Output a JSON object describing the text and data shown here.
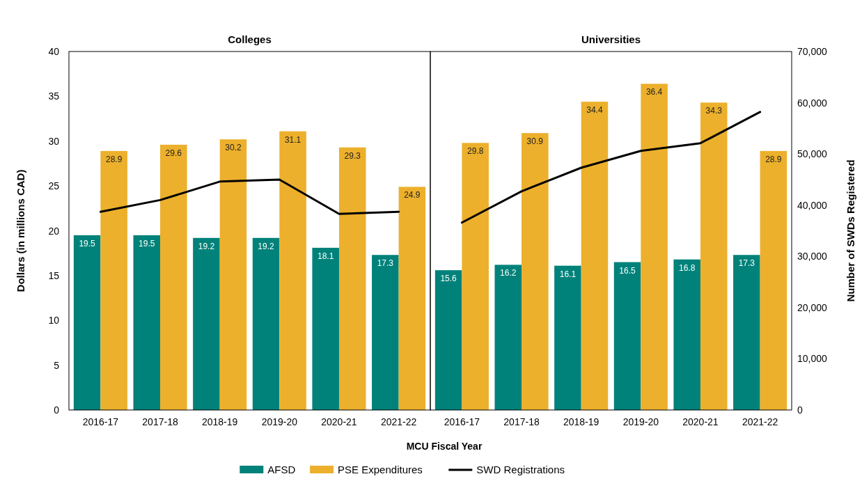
{
  "chart_data": [
    {
      "type": "bar",
      "title": "Colleges",
      "xlabel": "MCU Fiscal Year",
      "ylabel": "Dollars (in millions CAD)",
      "categories": [
        "2016-17",
        "2017-18",
        "2018-19",
        "2019-20",
        "2020-21",
        "2021-22"
      ],
      "ylim": [
        0,
        40
      ],
      "yticks": [
        0,
        5,
        10,
        15,
        20,
        25,
        30,
        35,
        40
      ],
      "y2lim": [
        0,
        70000
      ],
      "legend": "bottom",
      "grid": false,
      "series": [
        {
          "name": "AFSD",
          "color": "#00827a",
          "values": [
            19.5,
            19.5,
            19.2,
            19.2,
            18.1,
            17.3
          ],
          "value_labels": [
            "19.5",
            "19.5",
            "19.2",
            "19.2",
            "18.1",
            "17.3"
          ]
        },
        {
          "name": "PSE Expenditures",
          "color": "#ecb02c",
          "values": [
            28.9,
            29.6,
            30.2,
            31.1,
            29.3,
            24.9
          ],
          "value_labels": [
            "28.9",
            "29.6",
            "30.2",
            "31.1",
            "29.3",
            "24.9"
          ]
        },
        {
          "name": "SWD Registrations",
          "type": "line",
          "axis": "y2",
          "color": "#000000",
          "marker": "none",
          "line_style": "solid",
          "values": [
            38700,
            41000,
            44600,
            45000,
            38300,
            38700
          ]
        }
      ]
    },
    {
      "type": "bar",
      "title": "Universities",
      "y2label": "Number of SWDs Registered",
      "categories": [
        "2016-17",
        "2017-18",
        "2018-19",
        "2019-20",
        "2020-21",
        "2021-22"
      ],
      "ylim": [
        0,
        40
      ],
      "y2lim": [
        0,
        70000
      ],
      "y2ticks": [
        0,
        {
          "value": 10000,
          "label": "10,000"
        },
        {
          "value": 20000,
          "label": "20,000"
        },
        {
          "value": 30000,
          "label": "30,000"
        },
        {
          "value": 40000,
          "label": "40,000"
        },
        {
          "value": 50000,
          "label": "50,000"
        },
        {
          "value": 60000,
          "label": "60,000"
        },
        {
          "value": 70000,
          "label": "70,000"
        }
      ],
      "grid": false,
      "series": [
        {
          "color": "#00827a",
          "values": [
            15.6,
            16.2,
            16.1,
            16.5,
            16.8,
            17.3
          ],
          "value_labels": [
            "15.6",
            "16.2",
            "16.1",
            "16.5",
            "16.8",
            "17.3"
          ]
        },
        {
          "color": "#ecb02c",
          "values": [
            29.8,
            30.9,
            34.4,
            36.4,
            34.3,
            28.9
          ],
          "value_labels": [
            "29.8",
            "30.9",
            "34.4",
            "36.4",
            "34.3",
            "28.9"
          ]
        },
        {
          "type": "line",
          "axis": "y2",
          "color": "#000000",
          "marker": "none",
          "line_style": "solid",
          "values": [
            36600,
            42700,
            47300,
            50600,
            52100,
            58200
          ]
        }
      ]
    }
  ]
}
